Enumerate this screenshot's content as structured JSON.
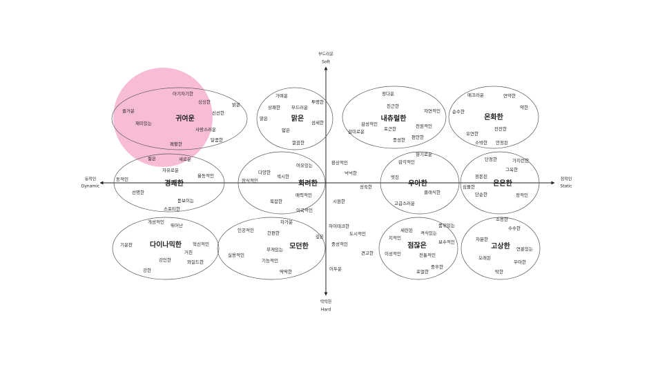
{
  "axes": {
    "top": {
      "ko": "부드러운",
      "en": "Soft"
    },
    "bottom": {
      "ko": "딱딱한",
      "en": "Hard"
    },
    "left": {
      "ko": "동적인",
      "en": "Dynamic"
    },
    "right": {
      "ko": "정적인",
      "en": "Static"
    }
  },
  "clusters": [
    {
      "title": "귀여운",
      "words": [
        "아기자기한",
        "싱싱한",
        "밝은",
        "즐거운",
        "신선한",
        "재미있는",
        "사랑스러운",
        "달콤한",
        "쾌활한"
      ]
    },
    {
      "title": "맑은",
      "words": [
        "가벼운",
        "투명한",
        "상쾌한",
        "부드러운",
        "맑은",
        "섬세한",
        "얇은",
        "깔끔한"
      ]
    },
    {
      "title": "내츄럴한",
      "words": [
        "정다운",
        "친근한",
        "자연적인",
        "감성적인",
        "전원적인",
        "포근한",
        "감미로운",
        "풍성한",
        "편안한"
      ]
    },
    {
      "title": "온화한",
      "words": [
        "매끄러운",
        "연약한",
        "약한",
        "순수한",
        "유연한",
        "잔잔한",
        "소박한",
        "안정된"
      ]
    },
    {
      "title": "경쾌한",
      "words": [
        "젊은",
        "새로운",
        "자유로운",
        "율동적인",
        "동적인",
        "선명한",
        "돋보이는",
        "스포티한"
      ]
    },
    {
      "title": "화려한",
      "words": [
        "여유있는",
        "다양한",
        "섹시한",
        "장식적인",
        "매력적인",
        "복잡한",
        "이국적인"
      ]
    },
    {
      "title": "우아한",
      "words": [
        "향기로운",
        "감각적인",
        "멋진",
        "클래식한",
        "고급스러운"
      ]
    },
    {
      "title": "은은한",
      "words": [
        "단정한",
        "가지런한",
        "그윽한",
        "정돈된",
        "심플한",
        "단순한",
        "정적인"
      ]
    },
    {
      "title": "다이나믹한",
      "words": [
        "개성적인",
        "뛰어난",
        "혁신적인",
        "기운찬",
        "거친",
        "강인한",
        "와일드한",
        "강한"
      ]
    },
    {
      "title": "모던한",
      "words": [
        "차가운",
        "인공적인",
        "간편한",
        "깊은",
        "무게있는",
        "실용적인",
        "기능적인",
        "딱딱한"
      ]
    },
    {
      "title": "점잖은",
      "words": [
        "품위있는",
        "세련된",
        "격식있는",
        "지적인",
        "보수적인",
        "이성적인",
        "전통적인",
        "중후한",
        "포멀한"
      ]
    },
    {
      "title": "고상한",
      "words": [
        "조용한",
        "수수한",
        "차분한",
        "연륜있는",
        "오래된",
        "우아한",
        "탁한"
      ]
    }
  ],
  "free_words": [
    "환상적인",
    "넉넉한",
    "성숙한",
    "시원한",
    "하이테크한",
    "도시적인",
    "중성적인",
    "견고한",
    "어두운"
  ]
}
